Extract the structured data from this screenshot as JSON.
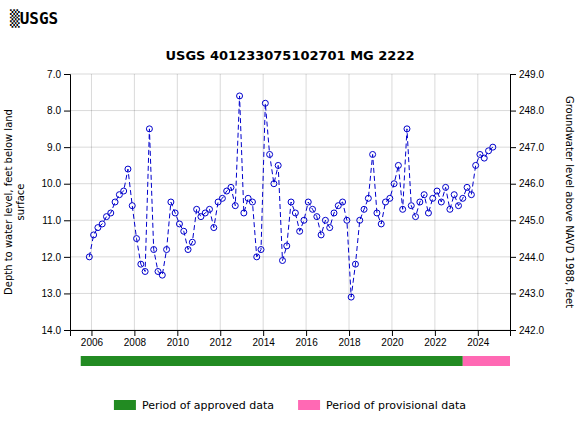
{
  "chart_data": {
    "type": "line",
    "title": "USGS 401233075102701 MG  2222",
    "annotations": [
      {
        "text": "▒USGS"
      }
    ],
    "ylabel": "Depth to water level, feet below land\nsurface",
    "y2label": "Groundwater level above NAVD 1988, feet",
    "xlim": [
      2005.0,
      2025.5
    ],
    "xticks": [
      2006,
      2008,
      2010,
      2012,
      2014,
      2016,
      2018,
      2020,
      2022,
      2024
    ],
    "ylim": [
      14.0,
      7.0
    ],
    "yticks": [
      {
        "value": 7.0,
        "label": "7.0"
      },
      {
        "value": 8.0,
        "label": "8.0"
      },
      {
        "value": 9.0,
        "label": "9.0"
      },
      {
        "value": 10.0,
        "label": "10.0"
      },
      {
        "value": 11.0,
        "label": "11.0"
      },
      {
        "value": 12.0,
        "label": "12.0"
      },
      {
        "value": 13.0,
        "label": "13.0"
      },
      {
        "value": 14.0,
        "label": "14.0"
      }
    ],
    "y2lim": [
      242.0,
      249.0
    ],
    "y2ticks": [
      {
        "value": 242.0,
        "label": "242.0"
      },
      {
        "value": 243.0,
        "label": "243.0"
      },
      {
        "value": 244.0,
        "label": "244.0"
      },
      {
        "value": 245.0,
        "label": "245.0"
      },
      {
        "value": 246.0,
        "label": "246.0"
      },
      {
        "value": 247.0,
        "label": "247.0"
      },
      {
        "value": 248.0,
        "label": "248.0"
      },
      {
        "value": 249.0,
        "label": "249.0"
      }
    ],
    "grid": true,
    "legend": "bottom",
    "x": [
      2005.9,
      2006.1,
      2006.3,
      2006.5,
      2006.7,
      2006.9,
      2007.1,
      2007.3,
      2007.5,
      2007.7,
      2007.9,
      2008.1,
      2008.3,
      2008.5,
      2008.7,
      2008.9,
      2009.1,
      2009.3,
      2009.5,
      2009.7,
      2009.9,
      2010.1,
      2010.3,
      2010.5,
      2010.7,
      2010.9,
      2011.1,
      2011.3,
      2011.5,
      2011.7,
      2011.9,
      2012.1,
      2012.3,
      2012.5,
      2012.7,
      2012.9,
      2013.1,
      2013.3,
      2013.5,
      2013.7,
      2013.9,
      2014.1,
      2014.3,
      2014.5,
      2014.7,
      2014.9,
      2015.1,
      2015.3,
      2015.5,
      2015.7,
      2015.9,
      2016.1,
      2016.3,
      2016.5,
      2016.7,
      2016.9,
      2017.1,
      2017.3,
      2017.5,
      2017.7,
      2017.9,
      2018.1,
      2018.3,
      2018.5,
      2018.7,
      2018.9,
      2019.1,
      2019.3,
      2019.5,
      2019.7,
      2019.9,
      2020.1,
      2020.3,
      2020.5,
      2020.7,
      2020.9,
      2021.1,
      2021.3,
      2021.5,
      2021.7,
      2021.9,
      2022.1,
      2022.3,
      2022.5,
      2022.7,
      2022.9,
      2023.1,
      2023.3,
      2023.5,
      2023.7,
      2023.9,
      2024.1,
      2024.3,
      2024.5,
      2024.7
    ],
    "series": [
      {
        "color": "#0000CC",
        "line_style": "dashed",
        "marker": "circle",
        "values": [
          12.0,
          11.4,
          11.2,
          11.1,
          10.9,
          10.8,
          10.5,
          10.3,
          10.2,
          9.6,
          10.6,
          11.5,
          12.2,
          12.4,
          8.5,
          11.8,
          12.4,
          12.5,
          11.8,
          10.5,
          10.8,
          11.1,
          11.3,
          11.8,
          11.6,
          10.7,
          10.9,
          10.8,
          10.7,
          11.2,
          10.5,
          10.4,
          10.2,
          10.1,
          10.6,
          7.6,
          10.8,
          10.4,
          10.5,
          12.0,
          11.8,
          7.8,
          9.2,
          10.0,
          9.5,
          12.1,
          11.7,
          10.5,
          10.8,
          11.3,
          11.0,
          10.5,
          10.7,
          10.9,
          11.4,
          11.0,
          11.2,
          10.8,
          10.6,
          10.5,
          11.0,
          13.1,
          12.2,
          11.0,
          10.7,
          10.4,
          9.2,
          10.8,
          11.1,
          10.5,
          10.4,
          10.0,
          9.5,
          10.7,
          8.5,
          10.6,
          10.9,
          10.5,
          10.3,
          10.8,
          10.4,
          10.2,
          10.5,
          10.1,
          10.7,
          10.3,
          10.6,
          10.4,
          10.1,
          10.3,
          9.5,
          9.2,
          9.3,
          9.1,
          9.0
        ]
      }
    ],
    "periods": [
      {
        "name": "Period of approved data",
        "color": "#228B22",
        "start": 2005.5,
        "end": 2023.3
      },
      {
        "name": "Period of provisional data",
        "color": "#FF69B4",
        "start": 2023.3,
        "end": 2025.5
      }
    ]
  }
}
